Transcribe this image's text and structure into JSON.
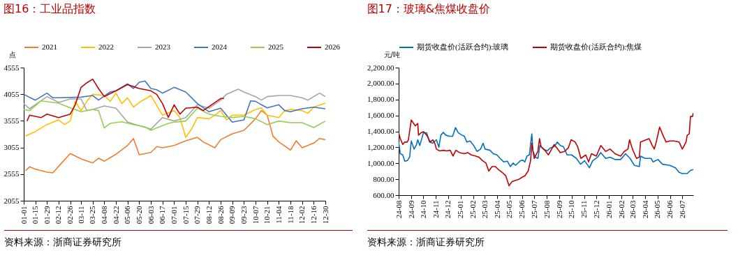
{
  "chart_data": [
    {
      "type": "line",
      "title": "图16：工业品指数",
      "ylabel": "点",
      "legend": "top",
      "xlim": [
        "--01-01",
        "--12-30"
      ],
      "ylim": [
        2055,
        4555
      ],
      "yticks": [
        2055,
        2555,
        3055,
        3555,
        4055,
        4555
      ],
      "xticks": [
        {
          "value": "--01-01",
          "label": "01-01"
        },
        {
          "value": "--01-15",
          "label": "01-15"
        },
        {
          "value": "--01-29",
          "label": "01-29"
        },
        {
          "value": "--02-12",
          "label": "02-12"
        },
        {
          "value": "--02-26",
          "label": "02-26"
        },
        {
          "value": "--03-11",
          "label": "03-11"
        },
        {
          "value": "--03-25",
          "label": "03-25"
        },
        {
          "value": "--04-08",
          "label": "04-08"
        },
        {
          "value": "--04-22",
          "label": "04-22"
        },
        {
          "value": "--05-06",
          "label": "05-06"
        },
        {
          "value": "--05-20",
          "label": "05-20"
        },
        {
          "value": "--06-03",
          "label": "06-03"
        },
        {
          "value": "--06-17",
          "label": "06-17"
        },
        {
          "value": "--07-01",
          "label": "07-01"
        },
        {
          "value": "--07-15",
          "label": "07-15"
        },
        {
          "value": "--07-29",
          "label": "07-29"
        },
        {
          "value": "--08-12",
          "label": "08-12"
        },
        {
          "value": "--08-26",
          "label": "08-26"
        },
        {
          "value": "--09-09",
          "label": "09-09"
        },
        {
          "value": "--09-23",
          "label": "09-23"
        },
        {
          "value": "--10-07",
          "label": "10-07"
        },
        {
          "value": "--10-21",
          "label": "10-21"
        },
        {
          "value": "--11-04",
          "label": "11-04"
        },
        {
          "value": "--11-18",
          "label": "11-18"
        },
        {
          "value": "--12-02",
          "label": "12-02"
        },
        {
          "value": "--12-16",
          "label": "12-16"
        },
        {
          "value": "--12-30",
          "label": "12-30"
        }
      ],
      "series": [
        {
          "name": "2021",
          "color": "#ed7d31",
          "x": [
            "--01-03",
            "--01-08",
            "--01-15",
            "--01-29",
            "--02-05",
            "--02-12",
            "--02-26",
            "--03-04",
            "--03-11",
            "--03-25",
            "--04-01",
            "--04-08",
            "--04-22",
            "--05-06",
            "--05-13",
            "--05-20",
            "--06-03",
            "--06-10",
            "--06-17",
            "--07-01",
            "--07-08",
            "--07-15",
            "--07-29",
            "--08-05",
            "--08-19",
            "--08-26",
            "--09-09",
            "--09-23",
            "--10-07",
            "--10-14",
            "--10-21",
            "--10-28",
            "--11-04",
            "--11-18",
            "--11-25",
            "--12-02",
            "--12-16",
            "--12-23",
            "--12-30"
          ],
          "values": [
            2614,
            2692,
            2648,
            2592,
            2579,
            2701,
            2941,
            2897,
            2840,
            2766,
            2853,
            2797,
            2928,
            3093,
            3224,
            2919,
            2962,
            3072,
            3050,
            3093,
            3137,
            3181,
            3246,
            3159,
            3050,
            3202,
            3312,
            3377,
            3595,
            3748,
            3660,
            3268,
            3159,
            3006,
            3181,
            3050,
            3137,
            3224,
            3202
          ]
        },
        {
          "name": "2022",
          "color": "#ffc000",
          "x": [
            "--01-03",
            "--01-15",
            "--01-29",
            "--02-12",
            "--02-19",
            "--02-26",
            "--03-04",
            "--03-11",
            "--03-18",
            "--03-25",
            "--04-08",
            "--04-15",
            "--04-22",
            "--04-29",
            "--05-06",
            "--05-13",
            "--05-20",
            "--06-03",
            "--06-17",
            "--07-01",
            "--07-08",
            "--07-15",
            "--07-22",
            "--07-29",
            "--08-12",
            "--08-19",
            "--08-26",
            "--09-02",
            "--09-09",
            "--09-23",
            "--10-07",
            "--10-14",
            "--10-21",
            "--11-04",
            "--11-11",
            "--11-18",
            "--12-02",
            "--12-09",
            "--12-16",
            "--12-30"
          ],
          "values": [
            3268,
            3355,
            3486,
            3573,
            3486,
            3552,
            3922,
            3748,
            3922,
            4053,
            4031,
            3922,
            4075,
            3879,
            3988,
            3813,
            3900,
            4031,
            3661,
            3748,
            3617,
            3246,
            3399,
            3617,
            3595,
            3661,
            3748,
            3573,
            3661,
            3661,
            3770,
            3800,
            3661,
            3617,
            3748,
            3770,
            3748,
            3696,
            3813,
            3888
          ]
        },
        {
          "name": "2023",
          "color": "#a5a5a5",
          "x": [
            "--01-01",
            "--01-08",
            "--01-29",
            "--02-12",
            "--02-26",
            "--03-11",
            "--03-18",
            "--03-25",
            "--04-08",
            "--04-22",
            "--05-06",
            "--05-20",
            "--06-03",
            "--06-17",
            "--07-01",
            "--07-15",
            "--07-29",
            "--08-12",
            "--08-26",
            "--09-02",
            "--09-16",
            "--09-23",
            "--10-07",
            "--10-14",
            "--10-21",
            "--11-04",
            "--11-18",
            "--12-02",
            "--12-09",
            "--12-16",
            "--12-23",
            "--12-30"
          ],
          "values": [
            3879,
            3783,
            4010,
            3900,
            3966,
            3966,
            3748,
            3770,
            3835,
            3792,
            3530,
            3464,
            3399,
            3617,
            3552,
            3617,
            3857,
            3792,
            3944,
            4053,
            4149,
            4097,
            4010,
            3944,
            4010,
            4031,
            4031,
            3988,
            3944,
            4010,
            4075,
            4010
          ]
        },
        {
          "name": "2024",
          "color": "#4472c4",
          "x": [
            "--01-01",
            "--01-15",
            "--01-29",
            "--02-05",
            "--02-12",
            "--03-11",
            "--03-25",
            "--04-01",
            "--04-15",
            "--04-22",
            "--05-06",
            "--05-13",
            "--05-20",
            "--05-27",
            "--06-03",
            "--06-10",
            "--06-17",
            "--07-01",
            "--07-15",
            "--07-29",
            "--08-12",
            "--08-26",
            "--09-09",
            "--09-23",
            "--10-01",
            "--10-07",
            "--10-14",
            "--10-21",
            "--11-04",
            "--11-11",
            "--11-18",
            "--12-02",
            "--12-16",
            "--12-30"
          ],
          "values": [
            4053,
            3944,
            4075,
            3988,
            3988,
            4001,
            4031,
            3944,
            4097,
            4119,
            4250,
            4162,
            4280,
            4302,
            4162,
            4140,
            4075,
            4184,
            4097,
            3879,
            3726,
            3792,
            3530,
            3573,
            3931,
            3922,
            3857,
            3800,
            3857,
            3748,
            3726,
            3783,
            3813,
            3783
          ]
        },
        {
          "name": "2025",
          "color": "#92d050",
          "x": [
            "--01-01",
            "--01-08",
            "--01-22",
            "--02-12",
            "--02-26",
            "--03-11",
            "--03-25",
            "--04-01",
            "--04-08",
            "--04-15",
            "--04-29",
            "--05-13",
            "--05-27",
            "--06-03",
            "--06-17",
            "--06-24",
            "--07-01",
            "--07-15",
            "--07-29",
            "--08-12",
            "--08-26",
            "--09-09",
            "--09-23",
            "--10-07",
            "--10-21",
            "--11-04",
            "--11-18",
            "--12-02",
            "--12-16",
            "--12-30"
          ],
          "values": [
            3770,
            3748,
            3931,
            3888,
            3800,
            3726,
            3770,
            3748,
            3421,
            3508,
            3538,
            3486,
            3442,
            3377,
            3464,
            3508,
            3530,
            3552,
            3792,
            3682,
            3639,
            3617,
            3639,
            3595,
            3486,
            3552,
            3521,
            3521,
            3430,
            3552
          ]
        },
        {
          "name": "2026",
          "color": "#c00000",
          "x": [
            "--01-05",
            "--01-08",
            "--01-22",
            "--01-29",
            "--02-12",
            "--02-26",
            "--03-04",
            "--03-11",
            "--03-18",
            "--03-25",
            "--04-01",
            "--04-08",
            "--04-22",
            "--05-06",
            "--05-20",
            "--06-03",
            "--06-10",
            "--06-17",
            "--06-24",
            "--07-01",
            "--07-08",
            "--07-15",
            "--07-29",
            "--08-05",
            "--08-19",
            "--08-26",
            "--08-30"
          ],
          "values": [
            3552,
            3661,
            3617,
            3682,
            3617,
            3682,
            3857,
            4184,
            4271,
            4337,
            4162,
            4010,
            4119,
            4236,
            4162,
            4119,
            4053,
            3879,
            3620,
            3857,
            3682,
            3792,
            3813,
            3748,
            3900,
            3975,
            3975
          ]
        }
      ],
      "annotations": [
        "资料来源：浙商证券研究所"
      ]
    },
    {
      "type": "line",
      "title": "图17：玻璃&焦煤收盘价",
      "ylabel": "元/吨",
      "legend": "top",
      "xlim": [
        "2024-08-01",
        "2026-07-28"
      ],
      "ylim": [
        600,
        2200
      ],
      "yticks": [
        {
          "value": 600,
          "label": "600.00"
        },
        {
          "value": 800,
          "label": "800.00"
        },
        {
          "value": 1000,
          "label": "1,000.00"
        },
        {
          "value": 1200,
          "label": "1,200.00"
        },
        {
          "value": 1400,
          "label": "1,400.00"
        },
        {
          "value": 1600,
          "label": "1,600.00"
        },
        {
          "value": 1800,
          "label": "1,800.00"
        },
        {
          "value": 2000,
          "label": "2,000.00"
        },
        {
          "value": 2200,
          "label": "2,200.00"
        }
      ],
      "xticks": [
        {
          "value": "2024-08",
          "label": "24-08"
        },
        {
          "value": "2024-09",
          "label": "24-09"
        },
        {
          "value": "2024-10",
          "label": "24-10"
        },
        {
          "value": "2024-11",
          "label": "24-11"
        },
        {
          "value": "2024-12",
          "label": "24-12"
        },
        {
          "value": "2025-01",
          "label": "25-01"
        },
        {
          "value": "2025-02",
          "label": "25-02"
        },
        {
          "value": "2025-03",
          "label": "25-03"
        },
        {
          "value": "2025-04",
          "label": "25-04"
        },
        {
          "value": "2025-05",
          "label": "25-05"
        },
        {
          "value": "2025-06",
          "label": "25-06"
        },
        {
          "value": "2025-07",
          "label": "25-07"
        },
        {
          "value": "2025-08",
          "label": "25-08"
        },
        {
          "value": "2025-09",
          "label": "25-09"
        },
        {
          "value": "2025-10",
          "label": "25-10"
        },
        {
          "value": "2025-11",
          "label": "25-11"
        },
        {
          "value": "2025-12",
          "label": "25-12"
        },
        {
          "value": "2026-01",
          "label": "26-01"
        },
        {
          "value": "2026-02",
          "label": "26-02"
        },
        {
          "value": "2026-03",
          "label": "26-03"
        },
        {
          "value": "2026-04",
          "label": "26-04"
        },
        {
          "value": "2026-05",
          "label": "26-05"
        },
        {
          "value": "2026-06",
          "label": "26-06"
        },
        {
          "value": "2026-07",
          "label": "26-07"
        }
      ],
      "series": [
        {
          "name": "期货收盘价(活跃合约):玻璃",
          "color": "#0070c0",
          "x": [
            "2024-08-01",
            "2024-08-05",
            "2024-08-11",
            "2024-08-16",
            "2024-08-22",
            "2024-08-28",
            "2024-09-01",
            "2024-09-08",
            "2024-09-14",
            "2024-09-17",
            "2024-09-22",
            "2024-10-01",
            "2024-10-09",
            "2024-10-16",
            "2024-10-24",
            "2024-11-02",
            "2024-11-08",
            "2024-11-13",
            "2024-11-19",
            "2024-11-25",
            "2024-12-04",
            "2024-12-12",
            "2024-12-19",
            "2024-12-26",
            "2025-01-04",
            "2025-01-10",
            "2025-01-16",
            "2025-01-24",
            "2025-02-02",
            "2025-02-10",
            "2025-02-19",
            "2025-02-25",
            "2025-03-02",
            "2025-03-14",
            "2025-03-22",
            "2025-03-31",
            "2025-04-08",
            "2025-04-17",
            "2025-04-26",
            "2025-05-03",
            "2025-05-10",
            "2025-05-16",
            "2025-05-28",
            "2025-06-03",
            "2025-06-08",
            "2025-06-13",
            "2025-06-19",
            "2025-06-25",
            "2025-06-28",
            "2025-07-04",
            "2025-07-10",
            "2025-07-15",
            "2025-07-24",
            "2025-08-02",
            "2025-08-10",
            "2025-08-19",
            "2025-08-27",
            "2025-09-03",
            "2025-09-11",
            "2025-09-20",
            "2025-10-01",
            "2025-10-13",
            "2025-10-23",
            "2025-11-02",
            "2025-11-14",
            "2025-11-22",
            "2025-12-04",
            "2025-12-12",
            "2025-12-24",
            "2026-01-04",
            "2026-01-16",
            "2026-01-30",
            "2026-02-11",
            "2026-02-22",
            "2026-03-05",
            "2026-03-17",
            "2026-03-20",
            "2026-03-31",
            "2026-04-15",
            "2026-04-20",
            "2026-05-02",
            "2026-05-13",
            "2026-05-31",
            "2026-06-14",
            "2026-06-23",
            "2026-07-01",
            "2026-07-13",
            "2026-07-21",
            "2026-07-28"
          ],
          "values": [
            1266,
            1120,
            1105,
            1026,
            1032,
            1076,
            1280,
            1178,
            1236,
            1295,
            1222,
            1382,
            1382,
            1266,
            1251,
            1295,
            1201,
            1353,
            1388,
            1353,
            1339,
            1339,
            1447,
            1382,
            1353,
            1339,
            1266,
            1280,
            1222,
            1149,
            1178,
            1251,
            1178,
            1163,
            1120,
            1105,
            1061,
            1017,
            1026,
            959,
            1003,
            974,
            1032,
            1038,
            1017,
            1090,
            1105,
            1368,
            1149,
            1076,
            1061,
            1222,
            1178,
            1155,
            1193,
            1207,
            1266,
            1222,
            1207,
            1105,
            1105,
            1061,
            988,
            1032,
            944,
            1032,
            1076,
            1134,
            1061,
            1076,
            1047,
            1047,
            1120,
            1061,
            974,
            959,
            1090,
            1061,
            1061,
            1017,
            1047,
            988,
            974,
            944,
            886,
            871,
            871,
            910,
            921
          ]
        },
        {
          "name": "期货收盘价(活跃合约):焦煤",
          "color": "#c00000",
          "x": [
            "2024-08-01",
            "2024-08-05",
            "2024-08-11",
            "2024-08-16",
            "2024-08-22",
            "2024-08-25",
            "2024-09-01",
            "2024-09-05",
            "2024-09-11",
            "2024-09-17",
            "2024-09-19",
            "2024-09-25",
            "2024-10-01",
            "2024-10-09",
            "2024-10-18",
            "2024-10-24",
            "2024-10-29",
            "2024-11-02",
            "2024-11-10",
            "2024-11-19",
            "2024-11-27",
            "2024-12-06",
            "2024-12-13",
            "2024-12-20",
            "2024-12-29",
            "2025-01-10",
            "2025-01-18",
            "2025-01-27",
            "2025-02-07",
            "2025-02-15",
            "2025-02-24",
            "2025-03-04",
            "2025-03-11",
            "2025-03-19",
            "2025-03-27",
            "2025-04-05",
            "2025-04-13",
            "2025-04-22",
            "2025-04-30",
            "2025-05-07",
            "2025-05-15",
            "2025-05-24",
            "2025-06-02",
            "2025-06-08",
            "2025-06-16",
            "2025-06-22",
            "2025-06-25",
            "2025-07-01",
            "2025-07-10",
            "2025-07-14",
            "2025-07-18",
            "2025-07-27",
            "2025-08-05",
            "2025-08-13",
            "2025-08-19",
            "2025-08-28",
            "2025-09-03",
            "2025-09-14",
            "2025-09-23",
            "2025-09-30",
            "2025-10-10",
            "2025-10-16",
            "2025-10-24",
            "2025-11-05",
            "2025-11-12",
            "2025-11-19",
            "2025-12-01",
            "2025-12-12",
            "2025-12-24",
            "2026-01-04",
            "2026-01-16",
            "2026-01-30",
            "2026-02-08",
            "2026-02-17",
            "2026-02-21",
            "2026-02-28",
            "2026-03-10",
            "2026-03-17",
            "2026-03-20",
            "2026-04-03",
            "2026-04-10",
            "2026-04-18",
            "2026-04-23",
            "2026-04-29",
            "2026-05-06",
            "2026-05-14",
            "2026-05-22",
            "2026-05-31",
            "2026-06-11",
            "2026-06-23",
            "2026-07-01",
            "2026-07-10",
            "2026-07-13",
            "2026-07-18",
            "2026-07-21",
            "2026-07-26",
            "2026-07-28"
          ],
          "values": [
            1382,
            1309,
            1236,
            1266,
            1266,
            1295,
            1543,
            1514,
            1470,
            1499,
            1353,
            1382,
            1397,
            1353,
            1266,
            1295,
            1251,
            1178,
            1155,
            1163,
            1155,
            1163,
            1090,
            1163,
            1134,
            1120,
            1134,
            1105,
            1090,
            1076,
            1032,
            1003,
            901,
            959,
            959,
            915,
            886,
            842,
            717,
            769,
            784,
            798,
            827,
            842,
            901,
            1032,
            1251,
            1061,
            1149,
            1309,
            1207,
            1163,
            1105,
            1178,
            1236,
            1178,
            1134,
            1149,
            1193,
            1295,
            1266,
            1207,
            1061,
            1105,
            1017,
            1120,
            1090,
            1222,
            1149,
            1178,
            1120,
            1090,
            1149,
            1178,
            1295,
            1178,
            1061,
            1076,
            1266,
            1295,
            1309,
            1222,
            1178,
            1295,
            1455,
            1353,
            1266,
            1280,
            1280,
            1266,
            1178,
            1266,
            1353,
            1368,
            1587,
            1587,
            1631
          ]
        }
      ],
      "annotations": [
        "资料来源：浙商证券研究所"
      ]
    }
  ]
}
